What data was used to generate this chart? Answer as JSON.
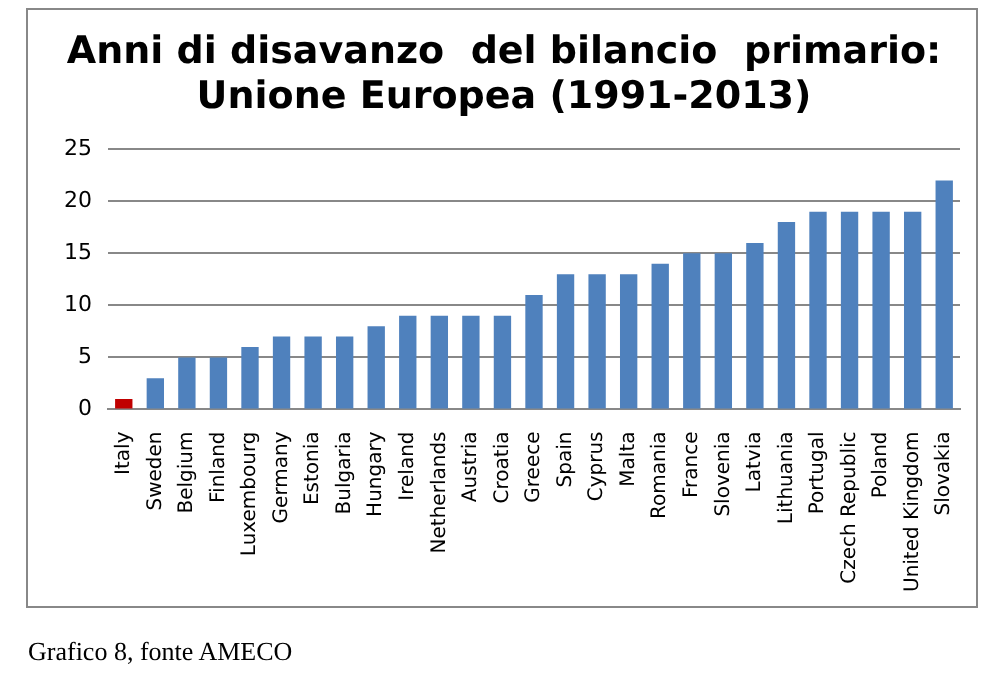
{
  "chart_data": {
    "type": "bar",
    "title": "Anni di disavanzo  del bilancio  primario:\nUnione Europea (1991-2013)",
    "categories": [
      "Italy",
      "Sweden",
      "Belgium",
      "Finland",
      "Luxembourg",
      "Germany",
      "Estonia",
      "Bulgaria",
      "Hungary",
      "Ireland",
      "Netherlands",
      "Austria",
      "Croatia",
      "Greece",
      "Spain",
      "Cyprus",
      "Malta",
      "Romania",
      "France",
      "Slovenia",
      "Latvia",
      "Lithuania",
      "Portugal",
      "Czech Republic",
      "Poland",
      "United Kingdom",
      "Slovakia"
    ],
    "values": [
      1,
      3,
      5,
      5,
      6,
      7,
      7,
      7,
      8,
      9,
      9,
      9,
      9,
      11,
      13,
      13,
      13,
      14,
      15,
      15,
      16,
      18,
      19,
      19,
      19,
      19,
      22
    ],
    "colors": [
      "#c00000",
      "#4f81bd",
      "#4f81bd",
      "#4f81bd",
      "#4f81bd",
      "#4f81bd",
      "#4f81bd",
      "#4f81bd",
      "#4f81bd",
      "#4f81bd",
      "#4f81bd",
      "#4f81bd",
      "#4f81bd",
      "#4f81bd",
      "#4f81bd",
      "#4f81bd",
      "#4f81bd",
      "#4f81bd",
      "#4f81bd",
      "#4f81bd",
      "#4f81bd",
      "#4f81bd",
      "#4f81bd",
      "#4f81bd",
      "#4f81bd",
      "#4f81bd",
      "#4f81bd"
    ],
    "ylim": [
      0,
      25
    ],
    "yticks": [
      0,
      5,
      10,
      15,
      20,
      25
    ],
    "grid": "y",
    "legend": false,
    "annotations": [
      "Grafico 8, fonte AMECO"
    ]
  }
}
